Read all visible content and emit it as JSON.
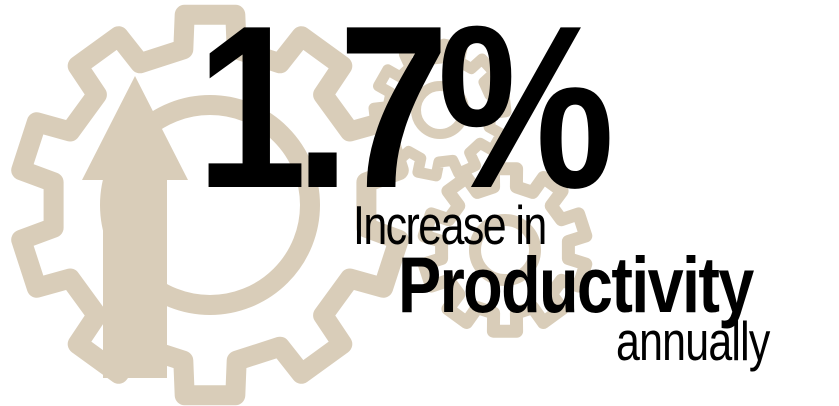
{
  "colors": {
    "gear_fill": "#d9cdb9",
    "arrow_fill": "#d9cdb9",
    "text": "#000000",
    "background": "#ffffff"
  },
  "icons": {
    "large_gear": "gear-icon",
    "small_gears": "gear-icon",
    "arrow": "arrow-up-icon"
  },
  "stat": {
    "value": "1.7%",
    "line1": "Increase in",
    "line2": "Productivity",
    "line3": "annually"
  }
}
